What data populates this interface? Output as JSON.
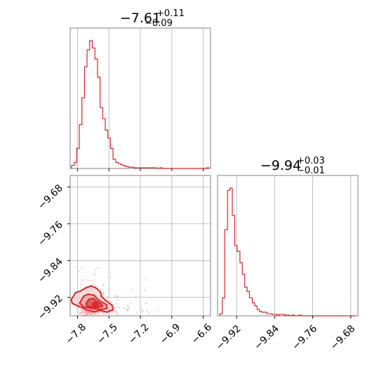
{
  "colors": {
    "series": "#d62728",
    "fill_light": "#f3c4c5",
    "fill_mid": "#e88b8d",
    "fill_dark": "#d12b2f",
    "grid": "#b0b0b0",
    "frame": "#808080"
  },
  "titles": {
    "p1": {
      "value": "−7.61",
      "plus": "+0.11",
      "minus": "−0.09"
    },
    "p2": {
      "value": "−9.94",
      "plus": "+0.03",
      "minus": "−0.01"
    }
  },
  "chart_data": [
    {
      "type": "histogram",
      "panel": "top-left",
      "title": "−7.61 +0.11 −0.09",
      "xlim": [
        -7.87,
        -6.53
      ],
      "x_ticks": [
        -7.8,
        -7.5,
        -7.2,
        -6.9,
        -6.6
      ],
      "bin_edges": [
        -7.857,
        -7.832,
        -7.808,
        -7.783,
        -7.758,
        -7.733,
        -7.709,
        -7.684,
        -7.659,
        -7.634,
        -7.609,
        -7.585,
        -7.56,
        -7.535,
        -7.51,
        -7.486,
        -7.461,
        -7.436,
        -7.411,
        -7.387,
        -7.362,
        -7.337,
        -7.312,
        -7.287,
        -7.263,
        -7.238,
        -7.213,
        -7.188,
        -7.164,
        -7.139,
        -7.114,
        -7.089,
        -7.064,
        -7.04,
        -7.015,
        -6.99,
        -6.965,
        -6.941,
        -6.916,
        -6.891,
        -6.866,
        -6.842,
        -6.817,
        -6.792,
        -6.767,
        -6.743,
        -6.718,
        -6.693,
        -6.668,
        -6.644,
        -6.619,
        -6.594,
        -6.569,
        -6.545
      ],
      "counts": [
        5,
        10,
        33,
        72,
        116,
        167,
        195,
        210,
        198,
        180,
        150,
        100,
        82,
        63,
        50,
        33,
        15,
        10,
        8,
        6,
        4,
        3,
        2,
        2,
        1,
        1,
        1,
        1,
        1,
        1,
        1,
        1,
        1,
        0,
        1,
        0,
        0,
        0,
        0,
        0,
        0,
        0,
        0,
        0,
        0,
        0,
        0,
        0,
        0,
        0,
        0,
        0,
        1
      ]
    },
    {
      "type": "histogram",
      "panel": "bottom-right",
      "title": "−9.94 +0.03 −0.01",
      "xlim": [
        -9.96,
        -9.665
      ],
      "x_ticks": [
        -9.92,
        -9.84,
        -9.76,
        -9.68
      ],
      "bin_edges": [
        -9.955,
        -9.95,
        -9.945,
        -9.939,
        -9.934,
        -9.929,
        -9.924,
        -9.919,
        -9.913,
        -9.908,
        -9.903,
        -9.898,
        -9.893,
        -9.887,
        -9.882,
        -9.877,
        -9.872,
        -9.867,
        -9.861,
        -9.856,
        -9.851,
        -9.846,
        -9.841,
        -9.835,
        -9.83,
        -9.825,
        -9.82,
        -9.815,
        -9.809,
        -9.804,
        -9.799,
        -9.794,
        -9.789,
        -9.783,
        -9.778,
        -9.773,
        -9.768,
        -9.763,
        -9.757,
        -9.752,
        -9.747,
        -9.742,
        -9.737,
        -9.731,
        -9.726,
        -9.721,
        -9.716,
        -9.711,
        -9.705,
        -9.7,
        -9.695,
        -9.69,
        -9.685,
        -9.679,
        -9.674,
        -9.669
      ],
      "counts": [
        3,
        25,
        120,
        175,
        178,
        140,
        98,
        90,
        74,
        58,
        40,
        34,
        25,
        18,
        14,
        9,
        6,
        5,
        5,
        3,
        3,
        2,
        2,
        1,
        2,
        2,
        1,
        1,
        0,
        1,
        0,
        0,
        1,
        0,
        0,
        0,
        0,
        0,
        0,
        0,
        0,
        0,
        0,
        0,
        0,
        0,
        0,
        0,
        0,
        0,
        0,
        0,
        0,
        0,
        0
      ]
    },
    {
      "type": "scatter",
      "panel": "bottom-left",
      "xlim": [
        -7.87,
        -6.53
      ],
      "ylim": [
        -9.96,
        -9.655
      ],
      "x_ticks": [
        -7.8,
        -7.5,
        -7.2,
        -6.9,
        -6.6
      ],
      "y_ticks": [
        -9.68,
        -9.76,
        -9.84,
        -9.92
      ],
      "density_peak": {
        "x": -7.61,
        "y": -9.94
      },
      "contours": [
        {
          "level": "outer",
          "points": [
            [
              -7.86,
              -9.925
            ],
            [
              -7.82,
              -9.91
            ],
            [
              -7.77,
              -9.906
            ],
            [
              -7.72,
              -9.899
            ],
            [
              -7.67,
              -9.895
            ],
            [
              -7.62,
              -9.9
            ],
            [
              -7.58,
              -9.909
            ],
            [
              -7.57,
              -9.918
            ],
            [
              -7.53,
              -9.927
            ],
            [
              -7.47,
              -9.937
            ],
            [
              -7.46,
              -9.947
            ],
            [
              -7.52,
              -9.952
            ],
            [
              -7.58,
              -9.948
            ],
            [
              -7.65,
              -9.951
            ],
            [
              -7.72,
              -9.946
            ],
            [
              -7.8,
              -9.938
            ],
            [
              -7.85,
              -9.933
            ]
          ]
        },
        {
          "level": "middle",
          "points": [
            [
              -7.78,
              -9.932
            ],
            [
              -7.74,
              -9.917
            ],
            [
              -7.7,
              -9.913
            ],
            [
              -7.64,
              -9.915
            ],
            [
              -7.61,
              -9.924
            ],
            [
              -7.57,
              -9.93
            ],
            [
              -7.52,
              -9.936
            ],
            [
              -7.52,
              -9.944
            ],
            [
              -7.58,
              -9.946
            ],
            [
              -7.66,
              -9.944
            ],
            [
              -7.74,
              -9.941
            ]
          ]
        },
        {
          "level": "inner",
          "points": [
            [
              -7.72,
              -9.934
            ],
            [
              -7.69,
              -9.924
            ],
            [
              -7.65,
              -9.922
            ],
            [
              -7.62,
              -9.928
            ],
            [
              -7.58,
              -9.933
            ],
            [
              -7.56,
              -9.939
            ],
            [
              -7.6,
              -9.942
            ],
            [
              -7.66,
              -9.941
            ],
            [
              -7.71,
              -9.939
            ]
          ]
        },
        {
          "level": "core",
          "points": [
            [
              -7.66,
              -9.936
            ],
            [
              -7.64,
              -9.931
            ],
            [
              -7.61,
              -9.932
            ],
            [
              -7.6,
              -9.937
            ],
            [
              -7.63,
              -9.94
            ]
          ]
        }
      ]
    }
  ]
}
